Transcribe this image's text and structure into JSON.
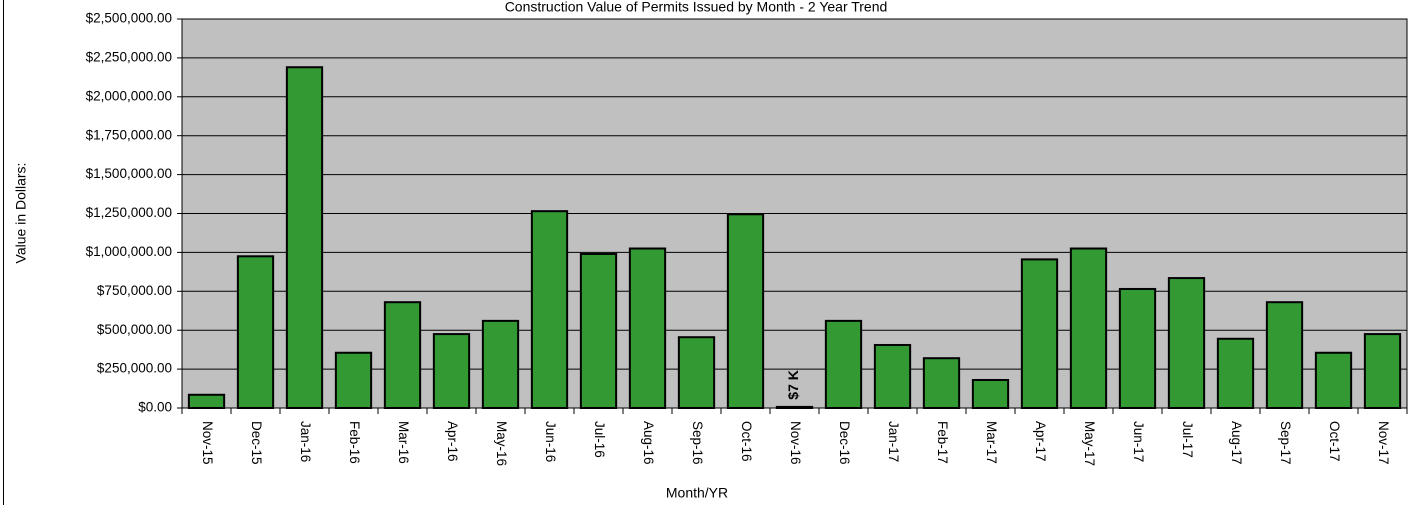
{
  "chart_data": {
    "type": "bar",
    "title": "Construction Value of Permits Issued by Month - 2 Year Trend",
    "y_label": "Value in Dollars:",
    "x_label": "Month/YR",
    "categories": [
      "Nov-15",
      "Dec-15",
      "Jan-16",
      "Feb-16",
      "Mar-16",
      "Apr-16",
      "May-16",
      "Jun-16",
      "Jul-16",
      "Aug-16",
      "Sep-16",
      "Oct-16",
      "Nov-16",
      "Dec-16",
      "Jan-17",
      "Feb-17",
      "Mar-17",
      "Apr-17",
      "May-17",
      "Jun-17",
      "Jul-17",
      "Aug-17",
      "Sep-17",
      "Oct-17",
      "Nov-17"
    ],
    "values": [
      85000,
      975000,
      2190000,
      355000,
      680000,
      475000,
      560000,
      1265000,
      990000,
      1025000,
      455000,
      1245000,
      7000,
      560000,
      405000,
      320000,
      180000,
      955000,
      1025000,
      765000,
      835000,
      445000,
      680000,
      355000,
      475000
    ],
    "value_labels": [
      null,
      null,
      null,
      null,
      null,
      null,
      null,
      null,
      null,
      null,
      null,
      null,
      "$7 K",
      null,
      null,
      null,
      null,
      null,
      null,
      null,
      null,
      null,
      null,
      null,
      null
    ],
    "color": "#339933",
    "ylim": [
      0,
      2500000
    ],
    "yticks": [
      {
        "value": 0,
        "label": "$0.00"
      },
      {
        "value": 250000,
        "label": "$250,000.00"
      },
      {
        "value": 500000,
        "label": "$500,000.00"
      },
      {
        "value": 750000,
        "label": "$750,000.00"
      },
      {
        "value": 1000000,
        "label": "$1,000,000.00"
      },
      {
        "value": 1250000,
        "label": "$1,250,000.00"
      },
      {
        "value": 1500000,
        "label": "$1,500,000.00"
      },
      {
        "value": 1750000,
        "label": "$1,750,000.00"
      },
      {
        "value": 2000000,
        "label": "$2,000,000.00"
      },
      {
        "value": 2250000,
        "label": "$2,250,000.00"
      },
      {
        "value": 2500000,
        "label": "$2,500,000.00"
      }
    ],
    "grid": true
  }
}
